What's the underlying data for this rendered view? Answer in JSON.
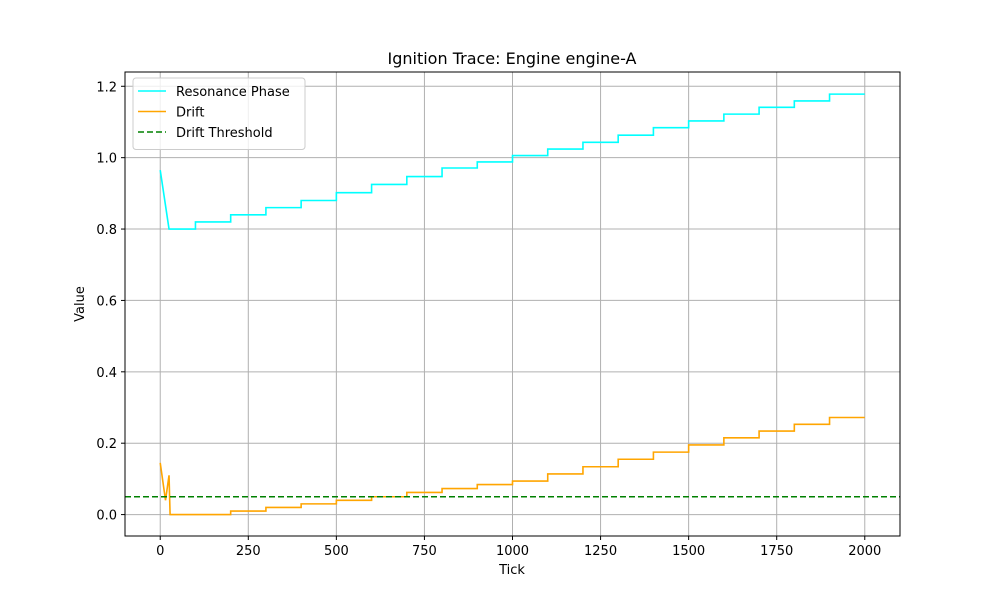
{
  "chart_data": {
    "type": "line",
    "title": "Ignition Trace: Engine engine-A",
    "xlabel": "Tick",
    "ylabel": "Value",
    "xlim": [
      -100,
      2100
    ],
    "ylim": [
      -0.06,
      1.24
    ],
    "x_ticks": [
      0,
      250,
      500,
      750,
      1000,
      1250,
      1500,
      1750,
      2000
    ],
    "x_tick_labels": [
      "0",
      "250",
      "500",
      "750",
      "1000",
      "1250",
      "1500",
      "1750",
      "2000"
    ],
    "y_ticks": [
      0.0,
      0.2,
      0.4,
      0.6,
      0.8,
      1.0,
      1.2
    ],
    "y_tick_labels": [
      "0.0",
      "0.2",
      "0.4",
      "0.6",
      "0.8",
      "1.0",
      "1.2"
    ],
    "grid": true,
    "legend_position": "top-left",
    "series": [
      {
        "name": "Resonance Phase",
        "color": "#00ffff",
        "style": "solid",
        "x": [
          0,
          25,
          100,
          100,
          200,
          200,
          300,
          300,
          400,
          400,
          500,
          500,
          600,
          600,
          700,
          700,
          800,
          800,
          900,
          900,
          1000,
          1000,
          1100,
          1100,
          1200,
          1200,
          1300,
          1300,
          1400,
          1400,
          1500,
          1500,
          1600,
          1600,
          1700,
          1700,
          1800,
          1800,
          1900,
          1900,
          2000
        ],
        "y": [
          0.965,
          0.8,
          0.8,
          0.82,
          0.82,
          0.84,
          0.84,
          0.86,
          0.86,
          0.88,
          0.88,
          0.902,
          0.902,
          0.925,
          0.925,
          0.947,
          0.947,
          0.971,
          0.971,
          0.988,
          0.988,
          1.006,
          1.006,
          1.024,
          1.024,
          1.043,
          1.043,
          1.063,
          1.063,
          1.084,
          1.084,
          1.103,
          1.103,
          1.122,
          1.122,
          1.141,
          1.141,
          1.159,
          1.159,
          1.178,
          1.178
        ]
      },
      {
        "name": "Drift",
        "color": "#ffa500",
        "style": "solid",
        "x": [
          0,
          15,
          25,
          28,
          200,
          200,
          300,
          300,
          400,
          400,
          500,
          500,
          600,
          600,
          700,
          700,
          800,
          800,
          900,
          900,
          1000,
          1000,
          1100,
          1100,
          1200,
          1200,
          1300,
          1300,
          1400,
          1400,
          1500,
          1500,
          1600,
          1600,
          1700,
          1700,
          1800,
          1800,
          1900,
          1900,
          2000
        ],
        "y": [
          0.145,
          0.04,
          0.11,
          0.0,
          0.0,
          0.01,
          0.01,
          0.02,
          0.02,
          0.03,
          0.03,
          0.04,
          0.04,
          0.05,
          0.05,
          0.062,
          0.062,
          0.073,
          0.073,
          0.084,
          0.084,
          0.094,
          0.094,
          0.114,
          0.114,
          0.134,
          0.134,
          0.155,
          0.155,
          0.175,
          0.175,
          0.195,
          0.195,
          0.215,
          0.215,
          0.234,
          0.234,
          0.253,
          0.253,
          0.272,
          0.272
        ]
      },
      {
        "name": "Drift Threshold",
        "color": "#008000",
        "style": "dashed",
        "y_const": 0.05
      }
    ]
  }
}
